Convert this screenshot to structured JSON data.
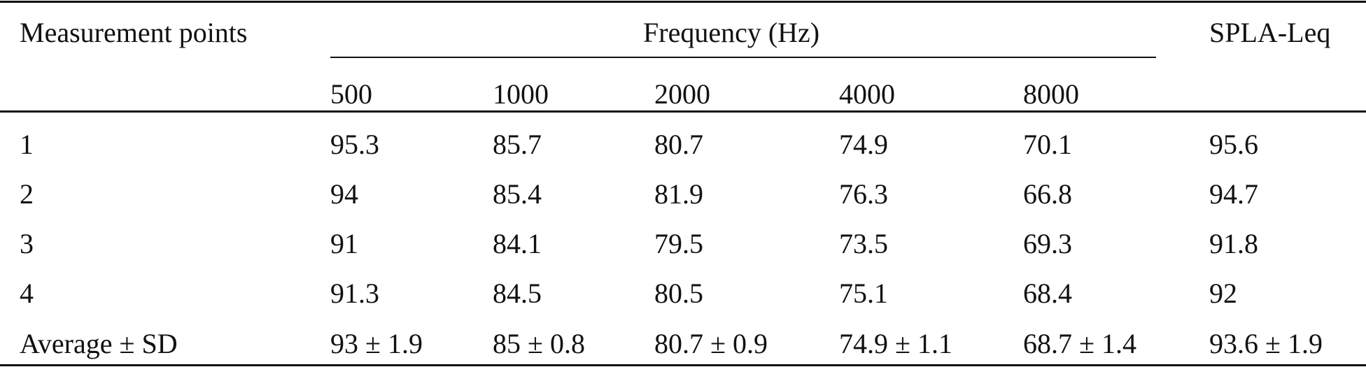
{
  "table": {
    "header": {
      "measurement_points": "Measurement points",
      "frequency": "Frequency (Hz)",
      "spla": "SPLA-Leq",
      "frequencies": [
        "500",
        "1000",
        "2000",
        "4000",
        "8000"
      ]
    },
    "rows": [
      [
        "1",
        "95.3",
        "85.7",
        "80.7",
        "74.9",
        "70.1",
        "95.6"
      ],
      [
        "2",
        "94",
        "85.4",
        "81.9",
        "76.3",
        "66.8",
        "94.7"
      ],
      [
        "3",
        "91",
        "84.1",
        "79.5",
        "73.5",
        "69.3",
        "91.8"
      ],
      [
        "4",
        "91.3",
        "84.5",
        "80.5",
        "75.1",
        "68.4",
        "92"
      ],
      [
        "Average ± SD",
        "93 ± 1.9",
        "85 ± 0.8",
        "80.7 ± 0.9",
        "74.9 ± 1.1",
        "68.7 ± 1.4",
        "93.6 ± 1.9"
      ]
    ]
  }
}
